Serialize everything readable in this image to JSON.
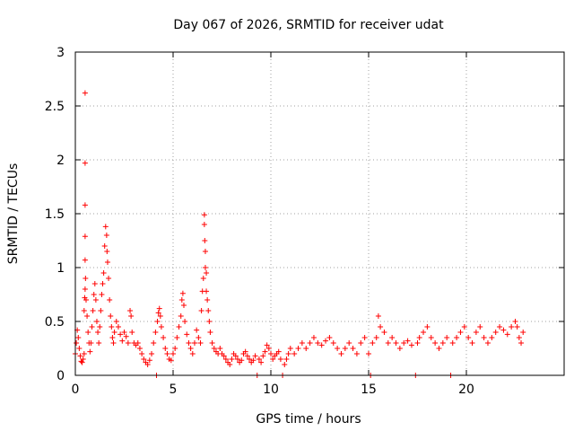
{
  "chart_data": {
    "type": "scatter",
    "title": "Day 067 of 2026, SRMTID for receiver udat",
    "xlabel": "GPS time / hours",
    "ylabel": "SRMTID / TECUs",
    "xlim": [
      0,
      25
    ],
    "ylim": [
      0,
      3
    ],
    "xticks": [
      0,
      5,
      10,
      15,
      20
    ],
    "yticks": [
      0,
      0.5,
      1,
      1.5,
      2,
      2.5,
      3
    ],
    "xtick_labels": [
      "0",
      "5",
      "10",
      "15",
      "20"
    ],
    "ytick_labels": [
      "0",
      "0.5",
      "1",
      "1.5",
      "2",
      "2.5",
      "3"
    ],
    "grid": true,
    "marker": "+",
    "series": [
      {
        "name": "SRMTID",
        "color": "#ff0000",
        "points": [
          [
            0.0,
            0.2
          ],
          [
            0.05,
            0.3
          ],
          [
            0.1,
            0.42
          ],
          [
            0.15,
            0.35
          ],
          [
            0.2,
            0.25
          ],
          [
            0.25,
            0.18
          ],
          [
            0.3,
            0.13
          ],
          [
            0.35,
            0.12
          ],
          [
            0.4,
            0.15
          ],
          [
            0.45,
            0.2
          ],
          [
            0.45,
            0.6
          ],
          [
            0.48,
            0.72
          ],
          [
            0.5,
            2.62
          ],
          [
            0.5,
            1.97
          ],
          [
            0.5,
            1.58
          ],
          [
            0.5,
            1.29
          ],
          [
            0.5,
            1.07
          ],
          [
            0.5,
            0.8
          ],
          [
            0.52,
            0.9
          ],
          [
            0.55,
            0.7
          ],
          [
            0.6,
            0.55
          ],
          [
            0.65,
            0.4
          ],
          [
            0.7,
            0.3
          ],
          [
            0.75,
            0.22
          ],
          [
            0.8,
            0.3
          ],
          [
            0.85,
            0.45
          ],
          [
            0.9,
            0.6
          ],
          [
            0.95,
            0.75
          ],
          [
            1.0,
            0.85
          ],
          [
            1.05,
            0.7
          ],
          [
            1.1,
            0.5
          ],
          [
            1.15,
            0.4
          ],
          [
            1.2,
            0.3
          ],
          [
            1.25,
            0.45
          ],
          [
            1.3,
            0.6
          ],
          [
            1.35,
            0.75
          ],
          [
            1.4,
            0.85
          ],
          [
            1.45,
            0.95
          ],
          [
            1.5,
            1.2
          ],
          [
            1.55,
            1.38
          ],
          [
            1.6,
            1.3
          ],
          [
            1.62,
            1.15
          ],
          [
            1.65,
            1.05
          ],
          [
            1.7,
            0.9
          ],
          [
            1.75,
            0.7
          ],
          [
            1.8,
            0.55
          ],
          [
            1.85,
            0.45
          ],
          [
            1.9,
            0.35
          ],
          [
            1.95,
            0.3
          ],
          [
            2.0,
            0.4
          ],
          [
            2.1,
            0.5
          ],
          [
            2.2,
            0.45
          ],
          [
            2.3,
            0.38
          ],
          [
            2.4,
            0.32
          ],
          [
            2.5,
            0.4
          ],
          [
            2.6,
            0.36
          ],
          [
            2.7,
            0.3
          ],
          [
            2.8,
            0.6
          ],
          [
            2.85,
            0.55
          ],
          [
            2.9,
            0.4
          ],
          [
            3.0,
            0.3
          ],
          [
            3.1,
            0.28
          ],
          [
            3.2,
            0.3
          ],
          [
            3.3,
            0.25
          ],
          [
            3.4,
            0.2
          ],
          [
            3.5,
            0.15
          ],
          [
            3.6,
            0.12
          ],
          [
            3.7,
            0.1
          ],
          [
            3.8,
            0.14
          ],
          [
            3.9,
            0.2
          ],
          [
            4.0,
            0.3
          ],
          [
            4.1,
            0.4
          ],
          [
            4.15,
            0.0
          ],
          [
            4.2,
            0.5
          ],
          [
            4.25,
            0.58
          ],
          [
            4.3,
            0.62
          ],
          [
            4.35,
            0.55
          ],
          [
            4.4,
            0.45
          ],
          [
            4.5,
            0.35
          ],
          [
            4.6,
            0.25
          ],
          [
            4.7,
            0.2
          ],
          [
            4.8,
            0.15
          ],
          [
            4.9,
            0.14
          ],
          [
            5.0,
            0.2
          ],
          [
            5.1,
            0.25
          ],
          [
            5.2,
            0.35
          ],
          [
            5.3,
            0.45
          ],
          [
            5.4,
            0.55
          ],
          [
            5.45,
            0.7
          ],
          [
            5.5,
            0.76
          ],
          [
            5.55,
            0.65
          ],
          [
            5.6,
            0.5
          ],
          [
            5.7,
            0.38
          ],
          [
            5.8,
            0.3
          ],
          [
            5.9,
            0.25
          ],
          [
            6.0,
            0.2
          ],
          [
            6.1,
            0.3
          ],
          [
            6.2,
            0.42
          ],
          [
            6.3,
            0.35
          ],
          [
            6.4,
            0.3
          ],
          [
            6.45,
            0.6
          ],
          [
            6.5,
            0.78
          ],
          [
            6.55,
            0.9
          ],
          [
            6.6,
            1.49
          ],
          [
            6.6,
            1.4
          ],
          [
            6.62,
            1.25
          ],
          [
            6.65,
            1.15
          ],
          [
            6.65,
            1.0
          ],
          [
            6.7,
            0.95
          ],
          [
            6.7,
            0.78
          ],
          [
            6.75,
            0.7
          ],
          [
            6.8,
            0.6
          ],
          [
            6.85,
            0.5
          ],
          [
            6.9,
            0.4
          ],
          [
            7.0,
            0.3
          ],
          [
            7.1,
            0.25
          ],
          [
            7.2,
            0.22
          ],
          [
            7.3,
            0.2
          ],
          [
            7.4,
            0.25
          ],
          [
            7.5,
            0.2
          ],
          [
            7.6,
            0.18
          ],
          [
            7.7,
            0.15
          ],
          [
            7.8,
            0.12
          ],
          [
            7.9,
            0.1
          ],
          [
            8.0,
            0.15
          ],
          [
            8.1,
            0.2
          ],
          [
            8.2,
            0.18
          ],
          [
            8.3,
            0.15
          ],
          [
            8.4,
            0.12
          ],
          [
            8.5,
            0.14
          ],
          [
            8.6,
            0.2
          ],
          [
            8.7,
            0.22
          ],
          [
            8.8,
            0.18
          ],
          [
            8.9,
            0.15
          ],
          [
            9.0,
            0.12
          ],
          [
            9.1,
            0.14
          ],
          [
            9.2,
            0.18
          ],
          [
            9.3,
            0.0
          ],
          [
            9.4,
            0.15
          ],
          [
            9.5,
            0.12
          ],
          [
            9.6,
            0.18
          ],
          [
            9.7,
            0.22
          ],
          [
            9.8,
            0.28
          ],
          [
            9.9,
            0.25
          ],
          [
            10.0,
            0.2
          ],
          [
            10.1,
            0.15
          ],
          [
            10.2,
            0.18
          ],
          [
            10.3,
            0.2
          ],
          [
            10.4,
            0.22
          ],
          [
            10.5,
            0.15
          ],
          [
            10.6,
            0.0
          ],
          [
            10.7,
            0.1
          ],
          [
            10.8,
            0.15
          ],
          [
            10.9,
            0.2
          ],
          [
            11.0,
            0.25
          ],
          [
            11.2,
            0.2
          ],
          [
            11.4,
            0.25
          ],
          [
            11.6,
            0.3
          ],
          [
            11.8,
            0.25
          ],
          [
            12.0,
            0.3
          ],
          [
            12.2,
            0.35
          ],
          [
            12.4,
            0.3
          ],
          [
            12.6,
            0.28
          ],
          [
            12.8,
            0.32
          ],
          [
            13.0,
            0.35
          ],
          [
            13.2,
            0.3
          ],
          [
            13.4,
            0.25
          ],
          [
            13.6,
            0.2
          ],
          [
            13.8,
            0.25
          ],
          [
            14.0,
            0.3
          ],
          [
            14.2,
            0.25
          ],
          [
            14.4,
            0.2
          ],
          [
            14.6,
            0.3
          ],
          [
            14.8,
            0.35
          ],
          [
            15.0,
            0.2
          ],
          [
            15.1,
            0.0
          ],
          [
            15.2,
            0.3
          ],
          [
            15.4,
            0.35
          ],
          [
            15.5,
            0.55
          ],
          [
            15.6,
            0.45
          ],
          [
            15.8,
            0.4
          ],
          [
            16.0,
            0.3
          ],
          [
            16.2,
            0.35
          ],
          [
            16.4,
            0.3
          ],
          [
            16.6,
            0.25
          ],
          [
            16.8,
            0.3
          ],
          [
            17.0,
            0.32
          ],
          [
            17.2,
            0.28
          ],
          [
            17.4,
            0.0
          ],
          [
            17.5,
            0.3
          ],
          [
            17.6,
            0.35
          ],
          [
            17.8,
            0.4
          ],
          [
            18.0,
            0.45
          ],
          [
            18.2,
            0.35
          ],
          [
            18.4,
            0.3
          ],
          [
            18.6,
            0.25
          ],
          [
            18.8,
            0.3
          ],
          [
            19.0,
            0.35
          ],
          [
            19.2,
            0.0
          ],
          [
            19.3,
            0.3
          ],
          [
            19.5,
            0.35
          ],
          [
            19.7,
            0.4
          ],
          [
            19.9,
            0.45
          ],
          [
            20.1,
            0.35
          ],
          [
            20.3,
            0.3
          ],
          [
            20.5,
            0.4
          ],
          [
            20.7,
            0.45
          ],
          [
            20.9,
            0.35
          ],
          [
            21.1,
            0.3
          ],
          [
            21.3,
            0.35
          ],
          [
            21.5,
            0.4
          ],
          [
            21.7,
            0.45
          ],
          [
            21.9,
            0.42
          ],
          [
            22.1,
            0.38
          ],
          [
            22.3,
            0.45
          ],
          [
            22.5,
            0.5
          ],
          [
            22.6,
            0.45
          ],
          [
            22.7,
            0.35
          ],
          [
            22.8,
            0.3
          ],
          [
            22.9,
            0.4
          ]
        ]
      }
    ]
  }
}
